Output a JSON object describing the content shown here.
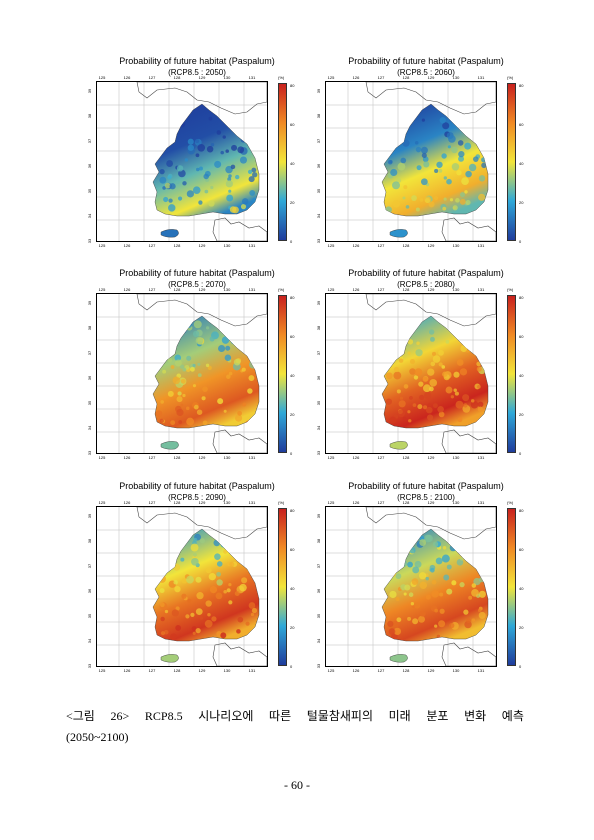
{
  "panels": [
    {
      "title": "Probability of future habitat (Paspalum)",
      "subtitle": "(RCP8.5 : 2050)",
      "level": 0.25
    },
    {
      "title": "Probability of future habitat (Paspalum)",
      "subtitle": "(RCP8.5 : 2060)",
      "level": 0.4
    },
    {
      "title": "Probability of future habitat (Paspalum)",
      "subtitle": "(RCP8.5 : 2070)",
      "level": 0.62
    },
    {
      "title": "Probability of future habitat (Paspalum)",
      "subtitle": "(RCP8.5 : 2080)",
      "level": 0.74
    },
    {
      "title": "Probability of future habitat (Paspalum)",
      "subtitle": "(RCP8.5 : 2090)",
      "level": 0.7
    },
    {
      "title": "Probability of future habitat (Paspalum)",
      "subtitle": "(RCP8.5 : 2100)",
      "level": 0.66
    }
  ],
  "axes": {
    "lon_ticks": [
      "125",
      "126",
      "127",
      "128",
      "129",
      "130",
      "131"
    ],
    "lat_ticks": [
      "39",
      "38",
      "37",
      "36",
      "35",
      "34",
      "33"
    ],
    "colorbar_unit": "(%)",
    "colorbar_ticks": [
      "80",
      "60",
      "40",
      "20",
      "0"
    ]
  },
  "colors": {
    "low": "#1f3c9c",
    "mid": "#f2e53a",
    "high": "#c8211e"
  },
  "caption": {
    "parts": [
      "<그림",
      "26>",
      "RCP8.5",
      "시나리오에",
      "따른",
      "털물참새피의",
      "미래",
      "분포",
      "변화",
      "예측"
    ],
    "line2": "(2050~2100)"
  },
  "page_number": "- 60 -"
}
